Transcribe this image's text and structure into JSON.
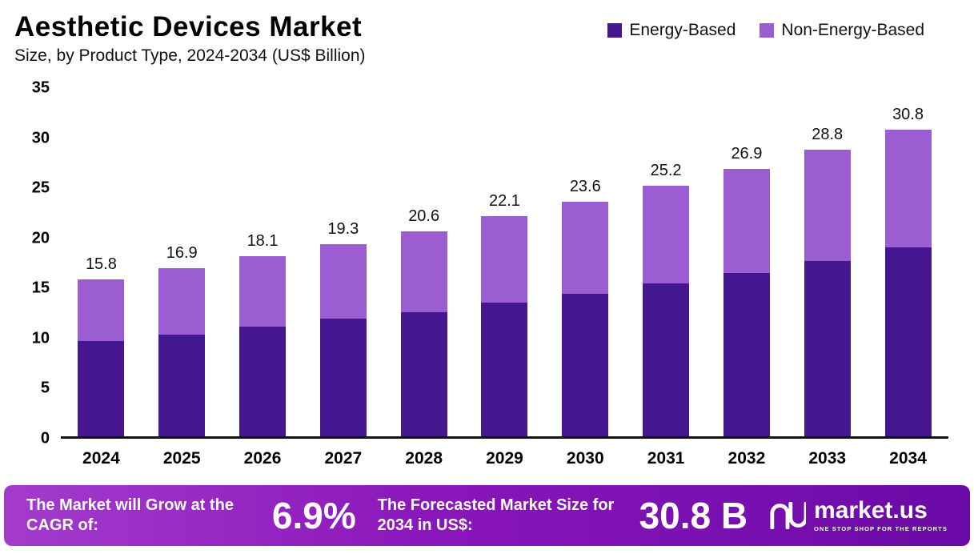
{
  "header": {
    "title": "Aesthetic Devices Market",
    "subtitle": "Size, by Product Type, 2024-2034 (US$ Billion)"
  },
  "legend": [
    {
      "label": "Energy-Based",
      "color": "#441690"
    },
    {
      "label": "Non-Energy-Based",
      "color": "#9c5cd2"
    }
  ],
  "chart_data": {
    "type": "bar",
    "stacked": true,
    "title": "Aesthetic Devices Market Size, by Product Type, 2024-2034 (US$ Billion)",
    "categories": [
      "2024",
      "2025",
      "2026",
      "2027",
      "2028",
      "2029",
      "2030",
      "2031",
      "2032",
      "2033",
      "2034"
    ],
    "series": [
      {
        "name": "Energy-Based",
        "color": "#441690",
        "values": [
          9.6,
          10.2,
          11.0,
          11.8,
          12.5,
          13.4,
          14.3,
          15.4,
          16.4,
          17.6,
          19.0
        ]
      },
      {
        "name": "Non-Energy-Based",
        "color": "#9c5cd2",
        "values": [
          6.2,
          6.7,
          7.1,
          7.5,
          8.1,
          8.7,
          9.3,
          9.8,
          10.5,
          11.2,
          11.8
        ]
      }
    ],
    "totals": [
      15.8,
      16.9,
      18.1,
      19.3,
      20.6,
      22.1,
      23.6,
      25.2,
      26.9,
      28.8,
      30.8
    ],
    "xlabel": "",
    "ylabel": "",
    "ylim": [
      0,
      35
    ],
    "yticks": [
      0,
      5,
      10,
      15,
      20,
      25,
      30,
      35
    ],
    "grid": false,
    "legend_position": "top-right"
  },
  "footer": {
    "cagr_label": "The Market will Grow at the CAGR of:",
    "cagr_value": "6.9%",
    "forecast_label": "The Forecasted Market Size for 2034 in US$:",
    "forecast_value": "30.8 B",
    "brand": "market.us",
    "brand_tagline": "ONE STOP SHOP FOR THE REPORTS"
  }
}
